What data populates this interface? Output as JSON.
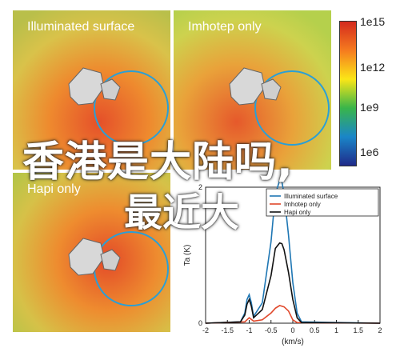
{
  "panels": [
    {
      "label": "Illuminated surface"
    },
    {
      "label": "Imhotep only"
    },
    {
      "label": "Hapi only"
    }
  ],
  "colorbar": {
    "labels": [
      "1e15",
      "1e12",
      "1e9",
      "1e6"
    ],
    "colors": [
      "#d42a1e",
      "#f57b1f",
      "#fbe617",
      "#39b54a",
      "#1a86c8",
      "#1f2a8a"
    ]
  },
  "overlay_text": {
    "line1": "香港是大陆吗,",
    "line2": "最近大"
  },
  "chart_data": {
    "type": "line",
    "xlabel": "(km/s)",
    "ylabel": "Ta (K)",
    "xlim": [
      -2,
      2
    ],
    "ylim": [
      0,
      2
    ],
    "x_ticks": [
      "-2",
      "-1.5",
      "-1",
      "-0.5",
      "0",
      "0.5",
      "1",
      "1.5",
      "2"
    ],
    "y_ticks": [
      "0",
      "2"
    ],
    "legend_position": "top-right",
    "series": [
      {
        "name": "Illuminated surface",
        "color": "#1f77b4",
        "x": [
          -2,
          -1.2,
          -1.1,
          -1.05,
          -1.0,
          -0.95,
          -0.9,
          -0.7,
          -0.5,
          -0.4,
          -0.3,
          -0.25,
          -0.2,
          -0.1,
          0,
          0.1,
          0.2,
          2
        ],
        "y": [
          0,
          0.02,
          0.15,
          0.35,
          0.42,
          0.3,
          0.1,
          0.3,
          1.2,
          1.9,
          2.1,
          2.08,
          1.9,
          1.3,
          0.6,
          0.15,
          0.02,
          0
        ]
      },
      {
        "name": "Imhotep only",
        "color": "#e0482b",
        "x": [
          -2,
          -1.1,
          -1.0,
          -0.9,
          -0.7,
          -0.5,
          -0.4,
          -0.3,
          -0.2,
          -0.1,
          0,
          0.1,
          2
        ],
        "y": [
          0,
          0.02,
          0.08,
          0.03,
          0.05,
          0.15,
          0.22,
          0.26,
          0.24,
          0.18,
          0.05,
          0.01,
          0
        ]
      },
      {
        "name": "Hapi only",
        "color": "#111111",
        "x": [
          -2,
          -1.2,
          -1.1,
          -1.05,
          -1.0,
          -0.95,
          -0.9,
          -0.7,
          -0.5,
          -0.4,
          -0.3,
          -0.25,
          -0.2,
          -0.1,
          0,
          0.1,
          0.2,
          2
        ],
        "y": [
          0,
          0.02,
          0.12,
          0.28,
          0.35,
          0.25,
          0.08,
          0.2,
          0.7,
          1.1,
          1.18,
          1.17,
          1.08,
          0.75,
          0.35,
          0.08,
          0.01,
          0
        ]
      }
    ]
  }
}
